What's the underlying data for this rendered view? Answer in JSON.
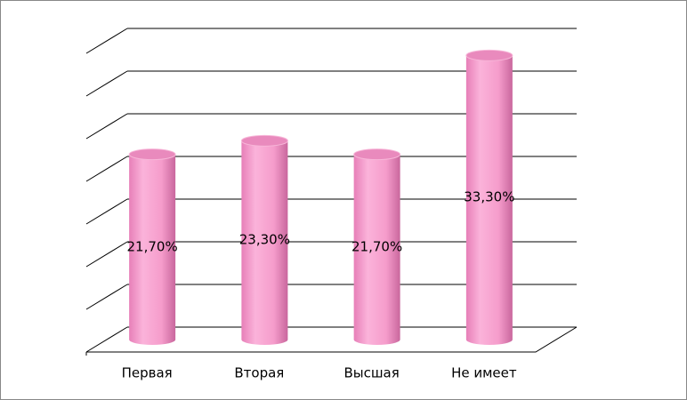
{
  "chart_data": {
    "type": "bar",
    "categories": [
      "Первая",
      "Вторая",
      "Высшая",
      "Не имеет"
    ],
    "values": [
      21.7,
      23.3,
      21.7,
      33.3
    ],
    "value_labels": [
      "21,70%",
      "23,30%",
      "21,70%",
      "33,30%"
    ],
    "color": "#f59ccb",
    "ylim": [
      0,
      35
    ],
    "yticks": [
      0,
      5,
      10,
      15,
      20,
      25,
      30,
      35
    ],
    "grid": true
  }
}
